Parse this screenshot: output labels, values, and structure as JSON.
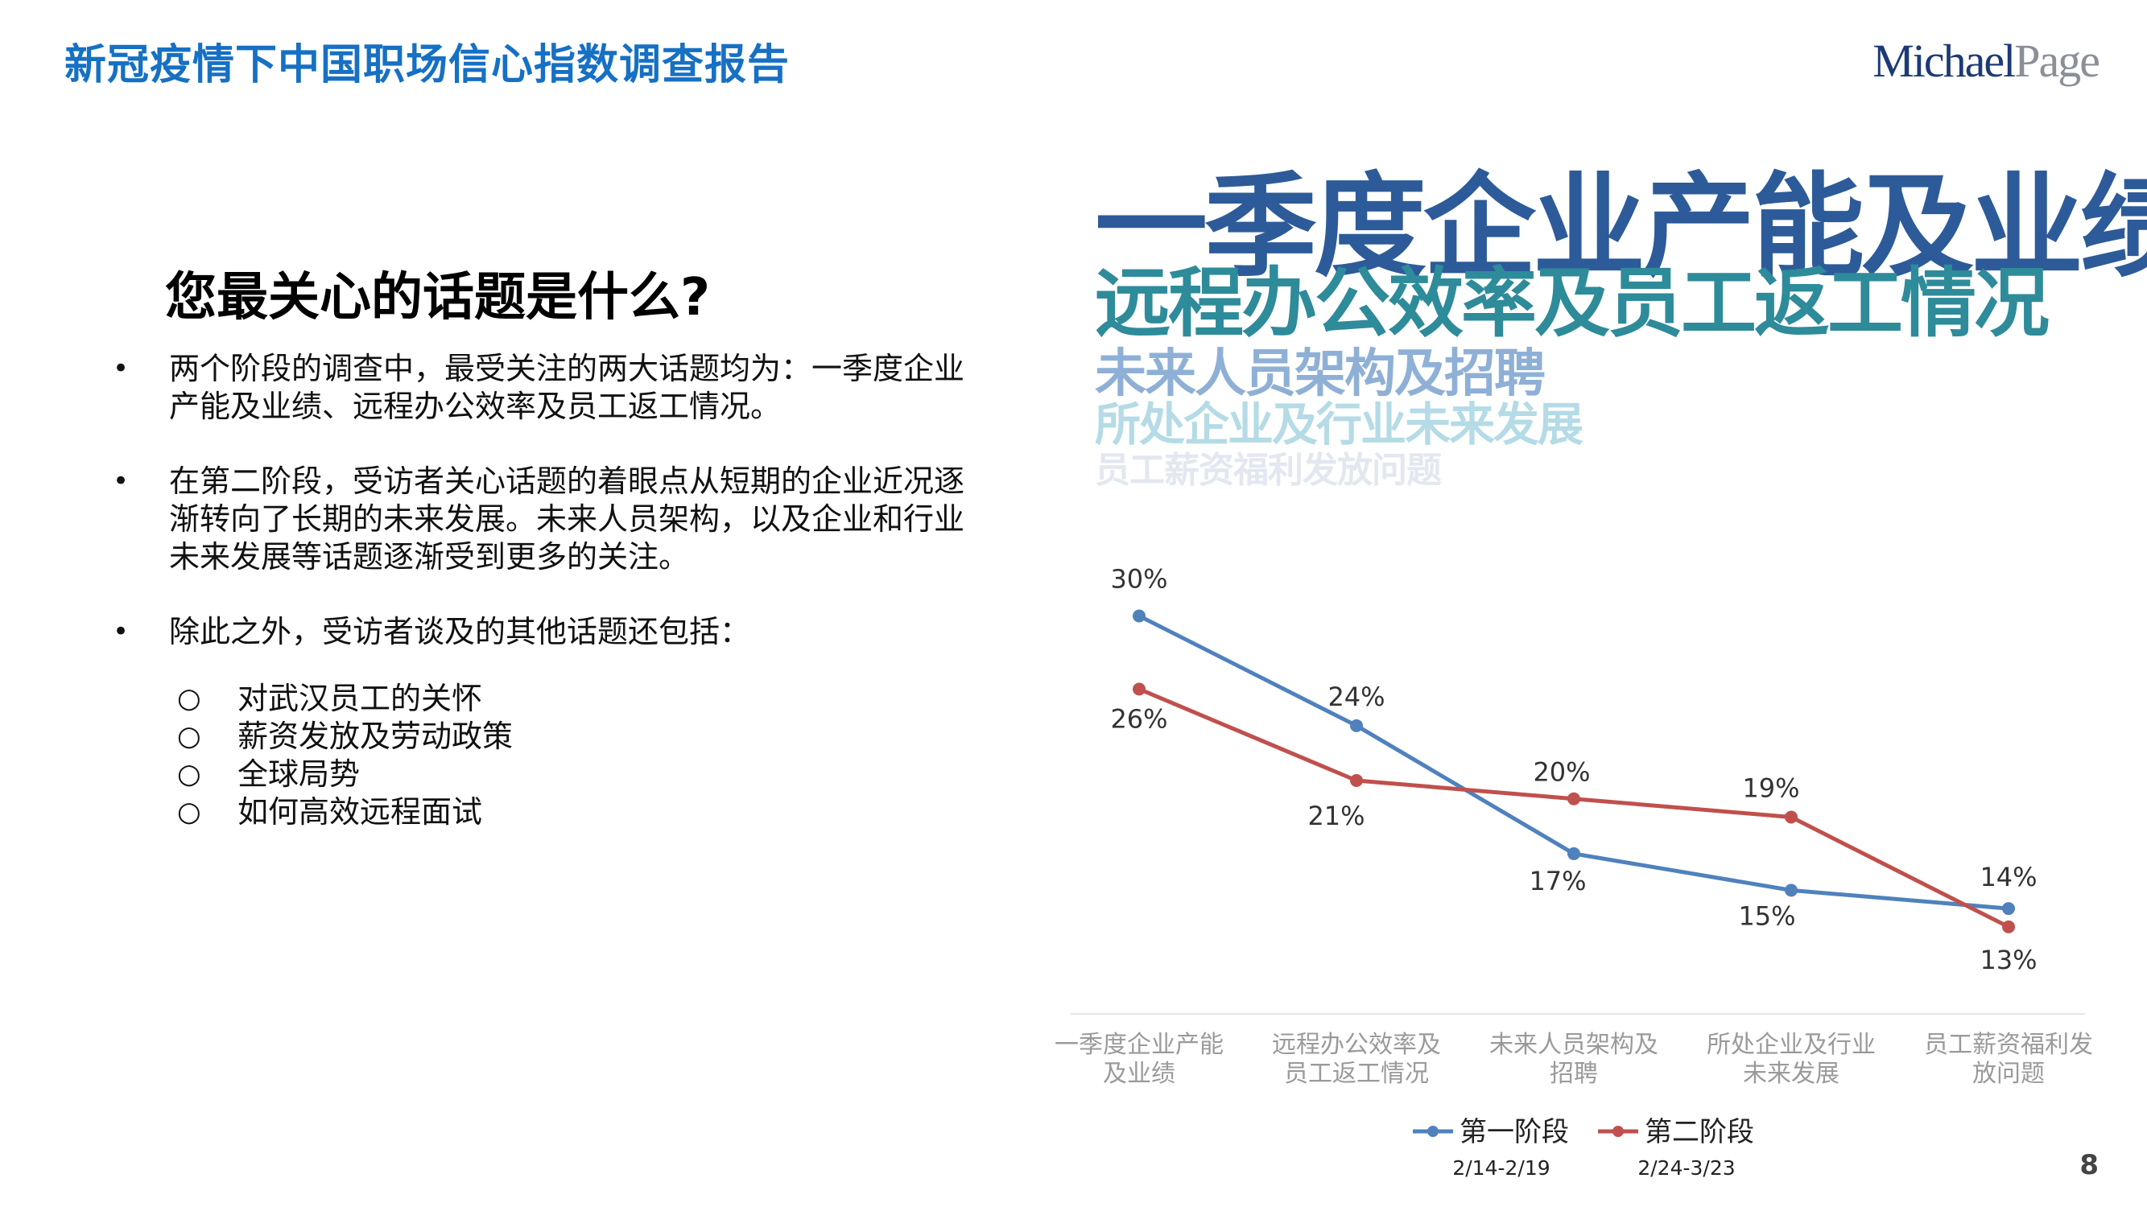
{
  "header": {
    "title": "新冠疫情下中国职场信心指数调查报告"
  },
  "brand": {
    "part1": "Michael",
    "part2": "Page"
  },
  "question": "您最关心的话题是什么?",
  "bullets": [
    "两个阶段的调查中，最受关注的两大话题均为：一季度企业产能及业绩、远程办公效率及员工返工情况。",
    "在第二阶段，受访者关心话题的着眼点从短期的企业近况逐渐转向了长期的未来发展。未来人员架构，以及企业和行业未来发展等话题逐渐受到更多的关注。",
    "除此之外，受访者谈及的其他话题还包括："
  ],
  "sub_bullets": [
    "对武汉员工的关怀",
    "薪资发放及劳动政策",
    "全球局势",
    "如何高效远程面试"
  ],
  "word_cloud": [
    "一季度企业产能及业绩",
    "远程办公效率及员工返工情况",
    "未来人员架构及招聘",
    "所处企业及行业未来发展",
    "员工薪资福利发放问题"
  ],
  "chart_data": {
    "type": "line",
    "categories": [
      [
        "一季度企业产能",
        "及业绩"
      ],
      [
        "远程办公效率及",
        "员工返工情况"
      ],
      [
        "未来人员架构及",
        "招聘"
      ],
      [
        "所处企业及行业",
        "未来发展"
      ],
      [
        "员工薪资福利发",
        "放问题"
      ]
    ],
    "series": [
      {
        "name": "第一阶段",
        "period": "2/14-2/19",
        "color": "#4f81bd",
        "values": [
          30,
          24,
          17,
          15,
          14
        ],
        "labels": [
          "30%",
          "24%",
          "17%",
          "15%",
          "14%"
        ]
      },
      {
        "name": "第二阶段",
        "period": "2/24-3/23",
        "color": "#c0504d",
        "values": [
          26,
          21,
          20,
          19,
          13
        ],
        "labels": [
          "26%",
          "21%",
          "20%",
          "19%",
          "13%"
        ]
      }
    ],
    "ylim": [
      10,
      32
    ],
    "grid": false,
    "legend": "bottom"
  },
  "page_number": "8"
}
